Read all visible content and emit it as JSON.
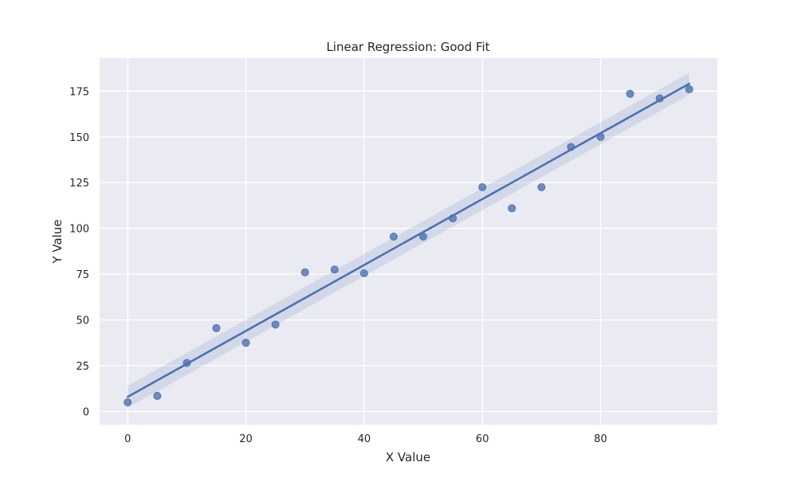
{
  "chart_data": {
    "type": "scatter",
    "title": "Linear Regression: Good Fit",
    "xlabel": "X Value",
    "ylabel": "Y Value",
    "xlim": [
      -4.75,
      99.75
    ],
    "ylim": [
      -7.2,
      193.0
    ],
    "xticks": [
      0,
      20,
      40,
      60,
      80
    ],
    "yticks": [
      0,
      25,
      50,
      75,
      100,
      125,
      150,
      175
    ],
    "grid": true,
    "background_color": "#eaeaf2",
    "grid_color": "#ffffff",
    "series_color": "#4c72b0",
    "points": {
      "x": [
        0,
        5,
        10,
        15,
        20,
        25,
        30,
        35,
        40,
        45,
        50,
        55,
        60,
        65,
        70,
        75,
        80,
        85,
        90,
        95
      ],
      "y": [
        5,
        8.5,
        26.5,
        45.5,
        37.5,
        47.5,
        76,
        77.5,
        75.5,
        95.5,
        95.5,
        105.5,
        122.5,
        111,
        122.5,
        144.5,
        150,
        173.5,
        171,
        176
      ]
    },
    "regression_line": {
      "x": [
        0,
        95
      ],
      "y": [
        8,
        179
      ]
    },
    "confidence_band": {
      "x": [
        0,
        95
      ],
      "upper": [
        14,
        185
      ],
      "lower": [
        2,
        173
      ]
    }
  }
}
